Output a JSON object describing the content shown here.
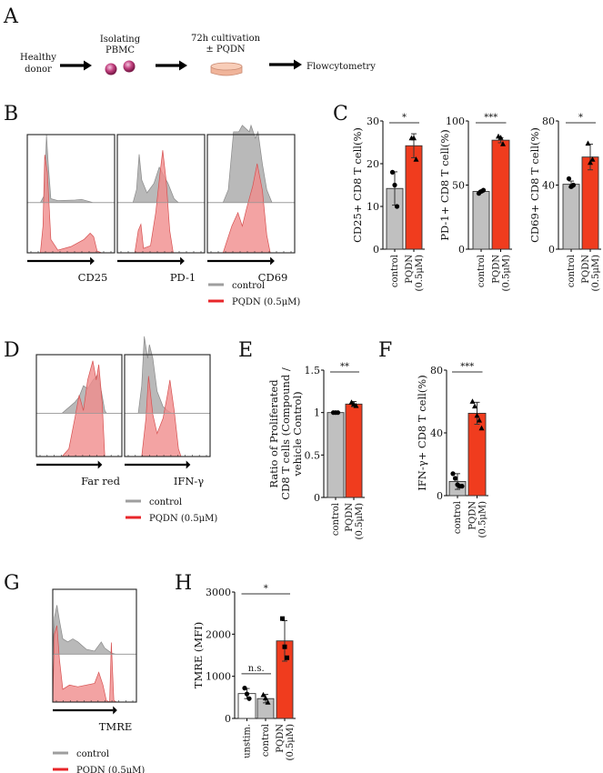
{
  "panel_letters": [
    "A",
    "B",
    "C",
    "D",
    "E",
    "F",
    "G",
    "H"
  ],
  "workflow": {
    "steps": [
      {
        "label_lines": [
          "Healthy",
          "donor"
        ]
      },
      {
        "label_lines": [
          "Isolating",
          "PBMC"
        ],
        "icon": "pbmc-cells-icon"
      },
      {
        "label_lines": [
          "72h cultivation",
          "± PQDN"
        ],
        "icon": "petri-dish-icon"
      },
      {
        "label_lines": [
          "Flowcytometry"
        ]
      }
    ]
  },
  "legend": {
    "control": "control",
    "pqdn": "PQDN (0.5μM)",
    "colors": {
      "control": "#9e9e9e",
      "pqdn": "#e8262a",
      "bar_control": "#c0c0c0",
      "bar_pqdn": "#f03c1e",
      "hist_control": "#b9b9b9",
      "hist_pqdn": "#f08c8c"
    }
  },
  "histograms": {
    "B": [
      "CD25",
      "PD-1",
      "CD69"
    ],
    "D": [
      "Far red",
      "IFN-γ"
    ],
    "G": [
      "TMRE"
    ]
  },
  "chart_data": [
    {
      "id": "C1",
      "type": "bar",
      "title": "",
      "ylabel": "CD25+ CD8 T cell(%)",
      "xlabel": "",
      "categories": [
        "control",
        "PQDN (0.5μM)"
      ],
      "category_lines": [
        [
          "control"
        ],
        [
          "PQDN",
          "(0.5μM)"
        ]
      ],
      "values": [
        14.2,
        24.2
      ],
      "errors": [
        3.9,
        2.8
      ],
      "points": [
        [
          18,
          15,
          10
        ],
        [
          26,
          26,
          21
        ]
      ],
      "markers": [
        "circle",
        "triangle"
      ],
      "ylim": [
        0,
        30
      ],
      "yticks": [
        0,
        10,
        20,
        30
      ],
      "significance": [
        {
          "from": 0,
          "to": 1,
          "label": "*"
        }
      ]
    },
    {
      "id": "C2",
      "type": "bar",
      "title": "",
      "ylabel": "PD-1+ CD8 T cell(%)",
      "xlabel": "",
      "categories": [
        "control",
        "PQDN (0.5μM)"
      ],
      "category_lines": [
        [
          "control"
        ],
        [
          "PQDN",
          "(0.5μM)"
        ]
      ],
      "values": [
        45,
        85
      ],
      "errors": [
        0.8,
        2
      ],
      "points": [
        [
          43.5,
          45,
          46
        ],
        [
          88,
          87,
          82
        ]
      ],
      "markers": [
        "circle",
        "triangle"
      ],
      "ylim": [
        0,
        100
      ],
      "yticks": [
        0,
        50,
        100
      ],
      "significance": [
        {
          "from": 0,
          "to": 1,
          "label": "***"
        }
      ]
    },
    {
      "id": "C3",
      "type": "bar",
      "title": "",
      "ylabel": "CD69+ CD8 T cell(%)",
      "xlabel": "",
      "categories": [
        "control",
        "PQDN (0.5μM)"
      ],
      "category_lines": [
        [
          "control"
        ],
        [
          "PQDN",
          "(0.5μM)"
        ]
      ],
      "values": [
        40.5,
        57.5
      ],
      "errors": [
        2,
        8
      ],
      "points": [
        [
          44,
          39,
          40
        ],
        [
          66,
          54,
          56
        ]
      ],
      "markers": [
        "circle",
        "triangle"
      ],
      "ylim": [
        0,
        80
      ],
      "yticks": [
        0,
        40,
        80
      ],
      "significance": [
        {
          "from": 0,
          "to": 1,
          "label": "*"
        }
      ]
    },
    {
      "id": "E",
      "type": "bar",
      "title": "",
      "ylabel": "Ratio of Proliferated CD8 T cells (Compound / vehicle Control)",
      "ylabel_lines": [
        "Ratio of Proliferated",
        "CD8 T cells (Compound /",
        "vehicle Control)"
      ],
      "xlabel": "",
      "categories": [
        "control",
        "PQDN (0.5μM)"
      ],
      "category_lines": [
        [
          "control"
        ],
        [
          "PQDN",
          "(0.5μM)"
        ]
      ],
      "values": [
        1.0,
        1.1
      ],
      "errors": [
        0,
        0.03
      ],
      "points": [
        [
          1,
          1,
          1
        ],
        [
          1.12,
          1.1,
          1.08
        ]
      ],
      "markers": [
        "circle",
        "triangle"
      ],
      "ylim": [
        0,
        1.5
      ],
      "yticks": [
        0,
        0.5,
        1,
        1.5
      ],
      "ytick_labels": [
        "0",
        "0.5",
        "1",
        "1.5"
      ],
      "significance": [
        {
          "from": 0,
          "to": 1,
          "label": "**"
        }
      ]
    },
    {
      "id": "F",
      "type": "bar",
      "title": "",
      "ylabel": "IFN-γ+ CD8 T cell(%)",
      "xlabel": "",
      "categories": [
        "control",
        "PQDN (0.5μM)"
      ],
      "category_lines": [
        [
          "control"
        ],
        [
          "PQDN",
          "(0.5μM)"
        ]
      ],
      "values": [
        9,
        52.5
      ],
      "errors": [
        5,
        7
      ],
      "points": [
        [
          14,
          11,
          7,
          6,
          6
        ],
        [
          60,
          57,
          51,
          48,
          43
        ]
      ],
      "markers": [
        "circle",
        "triangle"
      ],
      "ylim": [
        0,
        80
      ],
      "yticks": [
        0,
        40,
        80
      ],
      "significance": [
        {
          "from": 0,
          "to": 1,
          "label": "***"
        }
      ]
    },
    {
      "id": "H",
      "type": "bar",
      "title": "",
      "ylabel": "TMRE (MFI)",
      "xlabel": "",
      "categories": [
        "unstim.",
        "control",
        "PQDN (0.5μM)"
      ],
      "category_lines": [
        [
          "unstim."
        ],
        [
          "control"
        ],
        [
          "PQDN",
          "(0.5μM)"
        ]
      ],
      "values": [
        590,
        470,
        1840
      ],
      "errors": [
        120,
        100,
        480
      ],
      "points": [
        [
          720,
          580,
          470
        ],
        [
          560,
          480,
          380
        ],
        [
          2370,
          1700,
          1440
        ]
      ],
      "markers": [
        "circle",
        "triangle",
        "square"
      ],
      "ylim": [
        0,
        3000
      ],
      "yticks": [
        0,
        1000,
        2000,
        3000
      ],
      "significance": [
        {
          "from": 0,
          "to": 1,
          "label": "n.s."
        },
        {
          "from": 0,
          "to": 2,
          "label": "*"
        }
      ]
    }
  ]
}
